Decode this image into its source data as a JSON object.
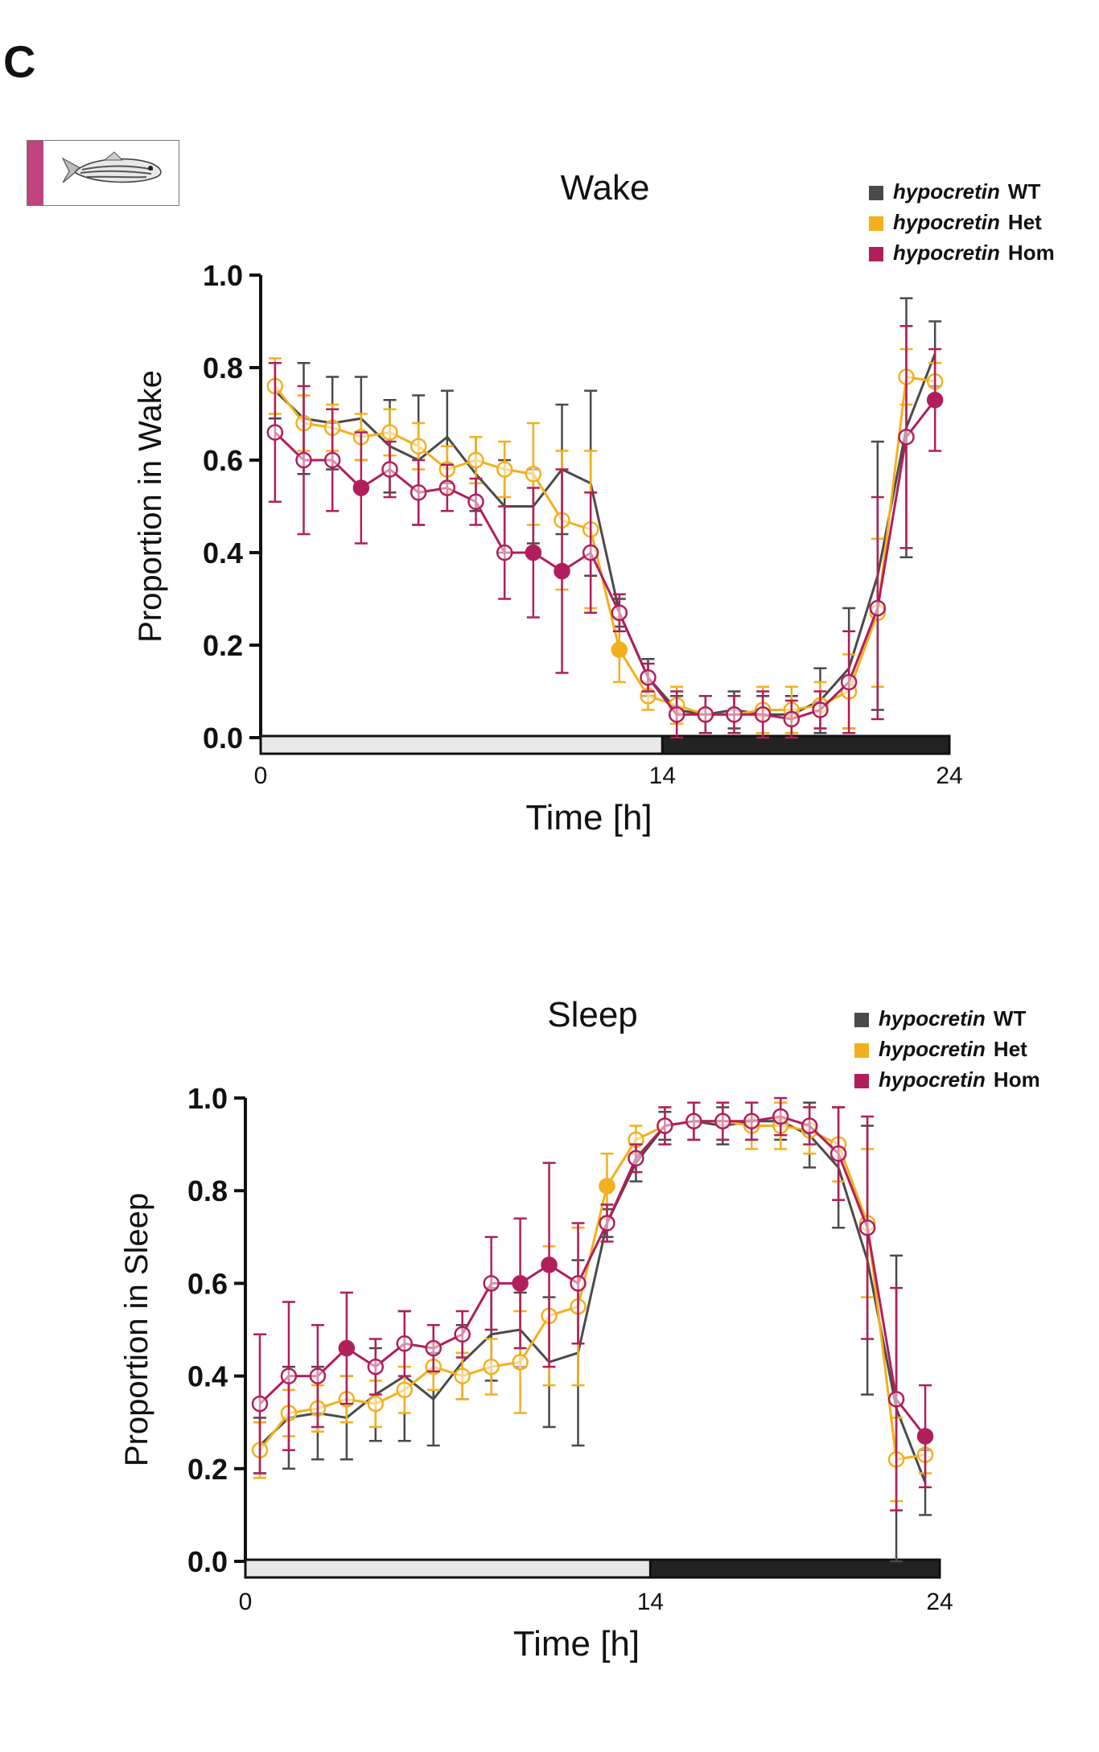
{
  "panel_letter": "C",
  "icons": {
    "fish": "zebrafish-icon"
  },
  "colors": {
    "wt": "#4a4a4a",
    "het": "#f2b01e",
    "hom": "#b11e5c",
    "light_bar": "#e8e8e8",
    "dark_bar": "#222222",
    "fish_tag": "#c0427f"
  },
  "chart_data": [
    {
      "type": "line",
      "title": "Wake",
      "xlabel": "Time [h]",
      "ylabel": "Proportion in Wake",
      "xlim": [
        0,
        24
      ],
      "ylim": [
        0,
        1.0
      ],
      "xticks": [
        "0",
        "14",
        "24"
      ],
      "yticks": [
        "0.0",
        "0.2",
        "0.4",
        "0.6",
        "0.8",
        "1.0"
      ],
      "light_dark": {
        "light": [
          0,
          14
        ],
        "dark": [
          14,
          24
        ]
      },
      "legend_position": "top-right",
      "x": [
        0.5,
        1.5,
        2.5,
        3.5,
        4.5,
        5.5,
        6.5,
        7.5,
        8.5,
        9.5,
        10.5,
        11.5,
        12.5,
        13.5,
        14.5,
        15.5,
        16.5,
        17.5,
        18.5,
        19.5,
        20.5,
        21.5,
        22.5,
        23.5
      ],
      "series": [
        {
          "key": "wt",
          "name_italic": "hypocretin",
          "name_suffix": "WT",
          "values": [
            0.75,
            0.69,
            0.68,
            0.69,
            0.63,
            0.6,
            0.65,
            0.57,
            0.5,
            0.5,
            0.58,
            0.55,
            0.27,
            0.13,
            0.06,
            0.05,
            0.06,
            0.05,
            0.05,
            0.08,
            0.15,
            0.35,
            0.67,
            0.83
          ],
          "errors": [
            0.06,
            0.12,
            0.1,
            0.09,
            0.1,
            0.14,
            0.1,
            0.08,
            0.1,
            0.08,
            0.14,
            0.2,
            0.03,
            0.04,
            0.03,
            0.04,
            0.04,
            0.04,
            0.04,
            0.07,
            0.13,
            0.29,
            0.28,
            0.07
          ],
          "filled": []
        },
        {
          "key": "het",
          "name_italic": "hypocretin",
          "name_suffix": "Het",
          "values": [
            0.76,
            0.68,
            0.67,
            0.65,
            0.66,
            0.63,
            0.58,
            0.6,
            0.58,
            0.57,
            0.47,
            0.45,
            0.19,
            0.09,
            0.07,
            0.05,
            0.05,
            0.06,
            0.06,
            0.07,
            0.1,
            0.27,
            0.78,
            0.77
          ],
          "errors": [
            0.06,
            0.06,
            0.05,
            0.05,
            0.05,
            0.05,
            0.05,
            0.05,
            0.06,
            0.11,
            0.15,
            0.17,
            0.07,
            0.03,
            0.04,
            0.04,
            0.04,
            0.05,
            0.05,
            0.05,
            0.08,
            0.16,
            0.06,
            0.04
          ],
          "filled": [
            12
          ]
        },
        {
          "key": "hom",
          "name_italic": "hypocretin",
          "name_suffix": "Hom",
          "values": [
            0.66,
            0.6,
            0.6,
            0.54,
            0.58,
            0.53,
            0.54,
            0.51,
            0.4,
            0.4,
            0.36,
            0.4,
            0.27,
            0.13,
            0.05,
            0.05,
            0.05,
            0.05,
            0.04,
            0.06,
            0.12,
            0.28,
            0.65,
            0.73
          ],
          "errors": [
            0.15,
            0.16,
            0.11,
            0.12,
            0.06,
            0.07,
            0.05,
            0.05,
            0.1,
            0.14,
            0.22,
            0.13,
            0.04,
            0.03,
            0.05,
            0.04,
            0.04,
            0.05,
            0.04,
            0.04,
            0.11,
            0.24,
            0.24,
            0.11
          ],
          "filled": [
            3,
            9,
            10,
            23
          ]
        }
      ]
    },
    {
      "type": "line",
      "title": "Sleep",
      "xlabel": "Time [h]",
      "ylabel": "Proportion in Sleep",
      "xlim": [
        0,
        24
      ],
      "ylim": [
        0,
        1.0
      ],
      "xticks": [
        "0",
        "14",
        "24"
      ],
      "yticks": [
        "0.0",
        "0.2",
        "0.4",
        "0.6",
        "0.8",
        "1.0"
      ],
      "light_dark": {
        "light": [
          0,
          14
        ],
        "dark": [
          14,
          24
        ]
      },
      "legend_position": "top-right",
      "x": [
        0.5,
        1.5,
        2.5,
        3.5,
        4.5,
        5.5,
        6.5,
        7.5,
        8.5,
        9.5,
        10.5,
        11.5,
        12.5,
        13.5,
        14.5,
        15.5,
        16.5,
        17.5,
        18.5,
        19.5,
        20.5,
        21.5,
        22.5,
        23.5
      ],
      "series": [
        {
          "key": "wt",
          "name_italic": "hypocretin",
          "name_suffix": "WT",
          "values": [
            0.25,
            0.31,
            0.32,
            0.31,
            0.36,
            0.4,
            0.35,
            0.43,
            0.49,
            0.5,
            0.43,
            0.45,
            0.73,
            0.86,
            0.94,
            0.95,
            0.94,
            0.95,
            0.95,
            0.92,
            0.85,
            0.65,
            0.33,
            0.17
          ],
          "errors": [
            0.06,
            0.11,
            0.1,
            0.09,
            0.1,
            0.14,
            0.1,
            0.08,
            0.1,
            0.08,
            0.14,
            0.2,
            0.03,
            0.04,
            0.03,
            0.04,
            0.04,
            0.04,
            0.04,
            0.07,
            0.13,
            0.29,
            0.33,
            0.07
          ],
          "filled": []
        },
        {
          "key": "het",
          "name_italic": "hypocretin",
          "name_suffix": "Het",
          "values": [
            0.24,
            0.32,
            0.33,
            0.35,
            0.34,
            0.37,
            0.42,
            0.4,
            0.42,
            0.43,
            0.53,
            0.55,
            0.81,
            0.91,
            0.94,
            0.95,
            0.95,
            0.94,
            0.94,
            0.93,
            0.9,
            0.73,
            0.22,
            0.23
          ],
          "errors": [
            0.06,
            0.05,
            0.05,
            0.05,
            0.05,
            0.05,
            0.05,
            0.05,
            0.06,
            0.11,
            0.15,
            0.17,
            0.07,
            0.03,
            0.04,
            0.04,
            0.04,
            0.05,
            0.05,
            0.05,
            0.08,
            0.16,
            0.09,
            0.04
          ],
          "filled": [
            12
          ]
        },
        {
          "key": "hom",
          "name_italic": "hypocretin",
          "name_suffix": "Hom",
          "values": [
            0.34,
            0.4,
            0.4,
            0.46,
            0.42,
            0.47,
            0.46,
            0.49,
            0.6,
            0.6,
            0.64,
            0.6,
            0.73,
            0.87,
            0.94,
            0.95,
            0.95,
            0.95,
            0.96,
            0.94,
            0.88,
            0.72,
            0.35,
            0.27
          ],
          "errors": [
            0.15,
            0.16,
            0.11,
            0.12,
            0.06,
            0.07,
            0.05,
            0.05,
            0.1,
            0.14,
            0.22,
            0.13,
            0.04,
            0.03,
            0.04,
            0.04,
            0.04,
            0.04,
            0.04,
            0.04,
            0.1,
            0.24,
            0.24,
            0.11
          ],
          "filled": [
            3,
            9,
            10,
            23
          ]
        }
      ]
    }
  ]
}
